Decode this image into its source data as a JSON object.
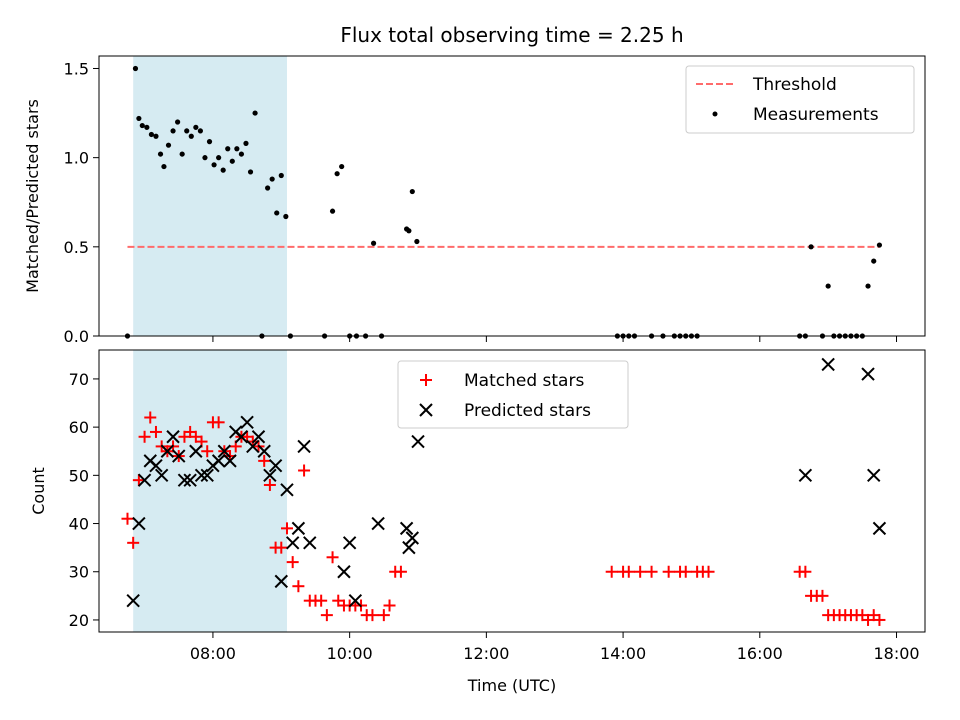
{
  "chart_data": [
    {
      "type": "scatter",
      "title": "Flux total observing time = 2.25 h",
      "ylabel": "Matched/Predicted stars",
      "xlabel": "",
      "xlim": [
        "06:20",
        "18:25"
      ],
      "ylim": [
        0,
        1.57
      ],
      "yticks": [
        "0.0",
        "0.5",
        "1.0",
        "1.5"
      ],
      "highlight_span": [
        "06:50",
        "09:05"
      ],
      "threshold": {
        "name": "Threshold",
        "value": 0.5,
        "x_from": "06:45",
        "x_to": "17:45",
        "color": "#ff6b6b"
      },
      "legend": {
        "location": "upper-right",
        "entries": [
          "Threshold",
          "Measurements"
        ]
      },
      "series": [
        {
          "name": "Measurements",
          "color": "#000000",
          "points": [
            [
              "06:45",
              0
            ],
            [
              "06:52",
              1.5
            ],
            [
              "06:55",
              1.22
            ],
            [
              "06:58",
              1.18
            ],
            [
              "07:02",
              1.17
            ],
            [
              "07:06",
              1.13
            ],
            [
              "07:10",
              1.12
            ],
            [
              "07:14",
              1.02
            ],
            [
              "07:17",
              0.95
            ],
            [
              "07:21",
              1.07
            ],
            [
              "07:25",
              1.15
            ],
            [
              "07:29",
              1.2
            ],
            [
              "07:33",
              1.02
            ],
            [
              "07:37",
              1.15
            ],
            [
              "07:41",
              1.12
            ],
            [
              "07:45",
              1.17
            ],
            [
              "07:49",
              1.15
            ],
            [
              "07:53",
              1.0
            ],
            [
              "07:57",
              1.09
            ],
            [
              "08:01",
              0.96
            ],
            [
              "08:05",
              1.0
            ],
            [
              "08:09",
              0.93
            ],
            [
              "08:13",
              1.05
            ],
            [
              "08:17",
              0.98
            ],
            [
              "08:21",
              1.05
            ],
            [
              "08:25",
              1.02
            ],
            [
              "08:29",
              1.08
            ],
            [
              "08:33",
              0.92
            ],
            [
              "08:37",
              1.25
            ],
            [
              "08:43",
              0
            ],
            [
              "08:48",
              0.83
            ],
            [
              "08:52",
              0.88
            ],
            [
              "08:56",
              0.69
            ],
            [
              "09:00",
              0.9
            ],
            [
              "09:04",
              0.67
            ],
            [
              "09:08",
              0
            ],
            [
              "09:38",
              0
            ],
            [
              "09:45",
              0.7
            ],
            [
              "09:49",
              0.91
            ],
            [
              "09:53",
              0.95
            ],
            [
              "10:00",
              0
            ],
            [
              "10:06",
              0
            ],
            [
              "10:14",
              0
            ],
            [
              "10:21",
              0.52
            ],
            [
              "10:28",
              0
            ],
            [
              "10:50",
              0.6
            ],
            [
              "10:52",
              0.59
            ],
            [
              "10:55",
              0.81
            ],
            [
              "10:59",
              0.53
            ],
            [
              "13:55",
              0
            ],
            [
              "14:00",
              0
            ],
            [
              "14:05",
              0
            ],
            [
              "14:10",
              0
            ],
            [
              "14:25",
              0
            ],
            [
              "14:35",
              0
            ],
            [
              "14:45",
              0
            ],
            [
              "14:50",
              0
            ],
            [
              "14:55",
              0
            ],
            [
              "15:00",
              0
            ],
            [
              "15:05",
              0
            ],
            [
              "16:35",
              0
            ],
            [
              "16:40",
              0
            ],
            [
              "16:45",
              0.5
            ],
            [
              "16:55",
              0
            ],
            [
              "17:00",
              0.28
            ],
            [
              "17:05",
              0
            ],
            [
              "17:10",
              0
            ],
            [
              "17:15",
              0
            ],
            [
              "17:20",
              0
            ],
            [
              "17:25",
              0
            ],
            [
              "17:30",
              0
            ],
            [
              "17:35",
              0.28
            ],
            [
              "17:40",
              0.42
            ],
            [
              "17:45",
              0.51
            ]
          ]
        }
      ]
    },
    {
      "type": "scatter",
      "title": "",
      "ylabel": "Count",
      "xlabel": "Time (UTC)",
      "xlim": [
        "06:20",
        "18:25"
      ],
      "ylim": [
        17.5,
        76
      ],
      "yticks": [
        "20",
        "30",
        "40",
        "50",
        "60",
        "70"
      ],
      "xticks": [
        "08:00",
        "10:00",
        "12:00",
        "14:00",
        "16:00",
        "18:00"
      ],
      "highlight_span": [
        "06:50",
        "09:05"
      ],
      "legend": {
        "location": "upper-center",
        "entries": [
          "Matched stars",
          "Predicted stars"
        ]
      },
      "series": [
        {
          "name": "Matched stars",
          "marker": "plus",
          "color": "#ff0000",
          "points": [
            [
              "06:45",
              41
            ],
            [
              "06:50",
              36
            ],
            [
              "06:55",
              49
            ],
            [
              "07:00",
              58
            ],
            [
              "07:05",
              62
            ],
            [
              "07:10",
              59
            ],
            [
              "07:15",
              56
            ],
            [
              "07:20",
              55
            ],
            [
              "07:25",
              56
            ],
            [
              "07:30",
              54
            ],
            [
              "07:35",
              58
            ],
            [
              "07:40",
              59
            ],
            [
              "07:45",
              58
            ],
            [
              "07:50",
              57
            ],
            [
              "07:55",
              55
            ],
            [
              "08:00",
              61
            ],
            [
              "08:05",
              61
            ],
            [
              "08:10",
              55
            ],
            [
              "08:15",
              54
            ],
            [
              "08:20",
              56
            ],
            [
              "08:25",
              58
            ],
            [
              "08:30",
              58
            ],
            [
              "08:35",
              57
            ],
            [
              "08:40",
              56
            ],
            [
              "08:45",
              53
            ],
            [
              "08:50",
              48
            ],
            [
              "08:55",
              35
            ],
            [
              "09:00",
              35
            ],
            [
              "09:05",
              39
            ],
            [
              "09:10",
              32
            ],
            [
              "09:15",
              27
            ],
            [
              "09:20",
              51
            ],
            [
              "09:25",
              24
            ],
            [
              "09:30",
              24
            ],
            [
              "09:35",
              24
            ],
            [
              "09:40",
              21
            ],
            [
              "09:45",
              33
            ],
            [
              "09:50",
              24
            ],
            [
              "09:55",
              23
            ],
            [
              "10:00",
              23
            ],
            [
              "10:05",
              23
            ],
            [
              "10:10",
              23
            ],
            [
              "10:15",
              21
            ],
            [
              "10:20",
              21
            ],
            [
              "10:30",
              21
            ],
            [
              "10:35",
              23
            ],
            [
              "10:40",
              30
            ],
            [
              "10:45",
              30
            ],
            [
              "13:50",
              30
            ],
            [
              "14:00",
              30
            ],
            [
              "14:05",
              30
            ],
            [
              "14:15",
              30
            ],
            [
              "14:25",
              30
            ],
            [
              "14:40",
              30
            ],
            [
              "14:50",
              30
            ],
            [
              "14:55",
              30
            ],
            [
              "15:05",
              30
            ],
            [
              "15:10",
              30
            ],
            [
              "15:15",
              30
            ],
            [
              "16:35",
              30
            ],
            [
              "16:40",
              30
            ],
            [
              "16:45",
              25
            ],
            [
              "16:50",
              25
            ],
            [
              "16:55",
              25
            ],
            [
              "17:00",
              21
            ],
            [
              "17:05",
              21
            ],
            [
              "17:10",
              21
            ],
            [
              "17:15",
              21
            ],
            [
              "17:20",
              21
            ],
            [
              "17:25",
              21
            ],
            [
              "17:30",
              21
            ],
            [
              "17:35",
              20
            ],
            [
              "17:40",
              21
            ],
            [
              "17:45",
              20
            ]
          ]
        },
        {
          "name": "Predicted stars",
          "marker": "x",
          "color": "#000000",
          "points": [
            [
              "06:50",
              24
            ],
            [
              "06:55",
              40
            ],
            [
              "07:00",
              49
            ],
            [
              "07:05",
              53
            ],
            [
              "07:10",
              52
            ],
            [
              "07:15",
              50
            ],
            [
              "07:20",
              55
            ],
            [
              "07:25",
              58
            ],
            [
              "07:30",
              54
            ],
            [
              "07:35",
              49
            ],
            [
              "07:40",
              49
            ],
            [
              "07:45",
              55
            ],
            [
              "07:50",
              50
            ],
            [
              "07:55",
              50
            ],
            [
              "08:00",
              52
            ],
            [
              "08:05",
              53
            ],
            [
              "08:10",
              55
            ],
            [
              "08:15",
              53
            ],
            [
              "08:20",
              59
            ],
            [
              "08:25",
              58
            ],
            [
              "08:30",
              61
            ],
            [
              "08:35",
              56
            ],
            [
              "08:40",
              58
            ],
            [
              "08:45",
              55
            ],
            [
              "08:50",
              50
            ],
            [
              "08:55",
              52
            ],
            [
              "09:00",
              28
            ],
            [
              "09:05",
              47
            ],
            [
              "09:10",
              36
            ],
            [
              "09:15",
              39
            ],
            [
              "09:20",
              56
            ],
            [
              "09:25",
              36
            ],
            [
              "09:55",
              30
            ],
            [
              "10:00",
              36
            ],
            [
              "10:05",
              24
            ],
            [
              "10:25",
              40
            ],
            [
              "10:50",
              39
            ],
            [
              "10:52",
              35
            ],
            [
              "10:55",
              37
            ],
            [
              "11:00",
              57
            ],
            [
              "16:40",
              50
            ],
            [
              "17:00",
              73
            ],
            [
              "17:35",
              71
            ],
            [
              "17:40",
              50
            ],
            [
              "17:45",
              39
            ]
          ]
        }
      ]
    }
  ]
}
